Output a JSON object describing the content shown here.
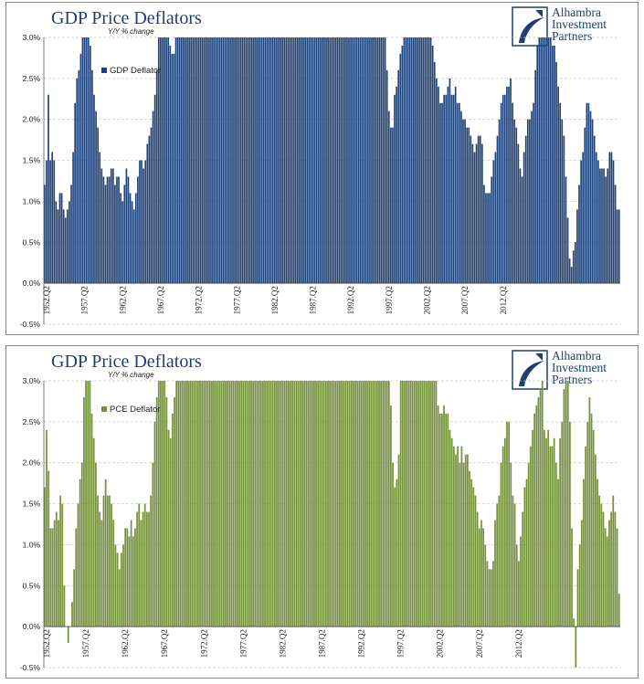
{
  "logo": {
    "line1": "Alhambra",
    "line2": "Investment",
    "line3": "Partners"
  },
  "chart_data": [
    {
      "type": "bar",
      "title": "GDP Price Deflators",
      "subtitle": "Y/Y % change",
      "legend": "GDP Deflator",
      "legend_position": "top-left",
      "color": "#1f4279",
      "ylim": [
        -0.5,
        3.0
      ],
      "yticks": [
        "-0.5%",
        "0.0%",
        "0.5%",
        "1.0%",
        "1.5%",
        "2.0%",
        "2.5%",
        "3.0%"
      ],
      "x_start": "1952.Q2",
      "x_tick_labels": [
        "1952.Q2",
        "1957.Q2",
        "1962.Q2",
        "1967.Q2",
        "1972.Q2",
        "1977.Q2",
        "1982.Q2",
        "1987.Q2",
        "1992.Q2",
        "1997.Q2",
        "2002.Q2",
        "2007.Q2",
        "2012.Q2"
      ],
      "grid": true,
      "values": [
        1.2,
        1.5,
        2.3,
        1.5,
        1.6,
        1.5,
        1.0,
        0.9,
        1.1,
        1.1,
        0.9,
        0.8,
        0.9,
        1.0,
        1.2,
        1.6,
        2.2,
        2.5,
        2.6,
        2.8,
        3.0,
        3.0,
        3.0,
        3.0,
        2.9,
        2.6,
        2.3,
        2.1,
        1.9,
        1.6,
        1.4,
        1.3,
        1.2,
        1.3,
        1.3,
        1.4,
        1.4,
        1.2,
        1.3,
        1.3,
        1.1,
        1.0,
        1.2,
        1.4,
        1.3,
        1.1,
        1.0,
        0.9,
        1.1,
        1.3,
        1.5,
        1.5,
        1.4,
        1.5,
        1.7,
        1.8,
        1.9,
        2.1,
        2.3,
        2.6,
        3.0,
        3.0,
        3.0,
        3.0,
        3.0,
        3.0,
        2.9,
        2.8,
        2.8,
        3.0,
        3.0,
        3.0,
        3.0,
        3.0,
        3.0,
        3.0,
        3.0,
        3.0,
        3.0,
        3.0,
        3.0,
        3.0,
        3.0,
        3.0,
        3.0,
        3.0,
        3.0,
        3.0,
        3.0,
        3.0,
        3.0,
        3.0,
        3.0,
        3.0,
        3.0,
        3.0,
        3.0,
        3.0,
        3.0,
        3.0,
        3.0,
        3.0,
        3.0,
        3.0,
        3.0,
        3.0,
        3.0,
        3.0,
        3.0,
        3.0,
        3.0,
        3.0,
        3.0,
        3.0,
        3.0,
        3.0,
        3.0,
        3.0,
        3.0,
        3.0,
        3.0,
        3.0,
        3.0,
        3.0,
        3.0,
        3.0,
        3.0,
        3.0,
        3.0,
        3.0,
        3.0,
        3.0,
        3.0,
        3.0,
        3.0,
        3.0,
        3.0,
        3.0,
        3.0,
        3.0,
        3.0,
        3.0,
        3.0,
        3.0,
        3.0,
        3.0,
        3.0,
        3.0,
        3.0,
        3.0,
        3.0,
        3.0,
        3.0,
        3.0,
        3.0,
        3.0,
        3.0,
        3.0,
        3.0,
        3.0,
        3.0,
        3.0,
        3.0,
        3.0,
        3.0,
        3.0,
        3.0,
        3.0,
        3.0,
        3.0,
        3.0,
        3.0,
        3.0,
        3.0,
        3.0,
        3.0,
        3.0,
        3.0,
        3.0,
        3.0,
        2.6,
        2.1,
        1.9,
        1.9,
        2.3,
        2.4,
        2.6,
        2.8,
        2.9,
        3.0,
        3.0,
        3.0,
        3.0,
        3.0,
        3.0,
        3.0,
        3.0,
        3.0,
        3.0,
        3.0,
        3.0,
        3.0,
        3.0,
        3.0,
        2.9,
        2.7,
        2.5,
        2.4,
        2.2,
        2.2,
        2.3,
        2.3,
        2.4,
        2.5,
        2.3,
        2.3,
        2.4,
        2.2,
        2.2,
        2.1,
        2.0,
        2.0,
        1.9,
        1.9,
        1.8,
        1.7,
        1.6,
        1.7,
        1.8,
        1.8,
        1.7,
        1.2,
        1.1,
        1.1,
        1.1,
        1.3,
        1.5,
        1.6,
        1.8,
        2.0,
        2.2,
        2.3,
        2.3,
        2.4,
        2.4,
        2.5,
        2.2,
        2.0,
        1.9,
        1.7,
        1.4,
        1.3,
        1.6,
        1.8,
        2.0,
        2.0,
        2.1,
        2.2,
        2.6,
        2.9,
        3.0,
        3.0,
        3.0,
        3.0,
        3.0,
        3.0,
        3.0,
        2.9,
        2.9,
        2.7,
        2.4,
        2.2,
        2.0,
        1.8,
        1.3,
        0.8,
        0.3,
        0.2,
        0.4,
        0.5,
        0.9,
        1.2,
        1.5,
        1.6,
        1.9,
        2.2,
        2.2,
        2.1,
        2.0,
        1.8,
        1.6,
        1.5,
        1.4,
        1.4,
        1.4,
        1.3,
        1.4,
        1.6,
        1.6,
        1.5,
        1.2,
        0.9,
        0.9
      ]
    },
    {
      "type": "bar",
      "title": "GDP Price Deflators",
      "subtitle": "Y/Y % change",
      "legend": "PCE Deflator",
      "legend_position": "top-left",
      "color": "#76923c",
      "ylim": [
        -0.5,
        3.0
      ],
      "yticks": [
        "-0.5%",
        "0.0%",
        "0.5%",
        "1.0%",
        "1.5%",
        "2.0%",
        "2.5%",
        "3.0%"
      ],
      "x_start": "1952.Q2",
      "x_tick_labels": [
        "1952.Q2",
        "1957.Q2",
        "1962.Q2",
        "1967.Q2",
        "1972.Q2",
        "1977.Q2",
        "1982.Q2",
        "1987.Q2",
        "1992.Q2",
        "1997.Q2",
        "2002.Q2",
        "2007.Q2",
        "2012.Q2"
      ],
      "grid": true,
      "values": [
        1.7,
        2.4,
        1.9,
        1.2,
        1.2,
        1.3,
        1.4,
        1.3,
        1.6,
        1.5,
        0.5,
        0.0,
        -0.2,
        0.0,
        0.3,
        0.7,
        1.2,
        1.5,
        1.8,
        2.0,
        2.8,
        3.0,
        3.0,
        3.0,
        2.6,
        2.3,
        2.0,
        1.6,
        1.4,
        1.3,
        1.6,
        1.8,
        1.6,
        1.6,
        1.5,
        1.3,
        1.0,
        0.9,
        0.7,
        0.9,
        1.0,
        1.2,
        1.2,
        1.1,
        1.3,
        1.1,
        1.2,
        1.4,
        1.5,
        1.3,
        1.4,
        1.5,
        1.4,
        1.4,
        1.6,
        2.0,
        2.5,
        2.8,
        3.0,
        3.0,
        3.0,
        3.0,
        2.8,
        2.4,
        2.3,
        2.6,
        2.8,
        3.0,
        3.0,
        3.0,
        3.0,
        3.0,
        3.0,
        3.0,
        3.0,
        3.0,
        3.0,
        3.0,
        3.0,
        3.0,
        3.0,
        3.0,
        3.0,
        3.0,
        3.0,
        3.0,
        3.0,
        3.0,
        3.0,
        3.0,
        3.0,
        3.0,
        3.0,
        3.0,
        3.0,
        3.0,
        3.0,
        3.0,
        3.0,
        3.0,
        3.0,
        3.0,
        3.0,
        3.0,
        3.0,
        3.0,
        3.0,
        3.0,
        3.0,
        3.0,
        3.0,
        3.0,
        3.0,
        3.0,
        3.0,
        3.0,
        3.0,
        3.0,
        3.0,
        3.0,
        3.0,
        3.0,
        3.0,
        3.0,
        3.0,
        3.0,
        3.0,
        3.0,
        3.0,
        3.0,
        3.0,
        3.0,
        3.0,
        3.0,
        3.0,
        3.0,
        3.0,
        3.0,
        3.0,
        3.0,
        3.0,
        3.0,
        3.0,
        3.0,
        3.0,
        3.0,
        3.0,
        3.0,
        3.0,
        3.0,
        3.0,
        3.0,
        3.0,
        3.0,
        3.0,
        3.0,
        3.0,
        3.0,
        3.0,
        3.0,
        3.0,
        3.0,
        3.0,
        3.0,
        3.0,
        3.0,
        3.0,
        3.0,
        3.0,
        3.0,
        3.0,
        3.0,
        3.0,
        3.0,
        3.0,
        3.0,
        2.7,
        2.0,
        1.7,
        1.8,
        2.1,
        3.0,
        3.0,
        3.0,
        3.0,
        3.0,
        3.0,
        3.0,
        3.0,
        3.0,
        3.0,
        3.0,
        3.0,
        3.0,
        3.0,
        3.0,
        3.0,
        3.0,
        3.0,
        3.0,
        2.7,
        2.6,
        2.6,
        2.7,
        2.6,
        2.6,
        2.4,
        2.3,
        2.2,
        2.1,
        2.2,
        2.0,
        2.2,
        2.0,
        2.1,
        2.1,
        1.9,
        1.8,
        1.7,
        1.6,
        1.4,
        1.2,
        1.3,
        1.2,
        1.0,
        0.8,
        0.7,
        0.7,
        0.8,
        1.3,
        1.5,
        1.6,
        2.0,
        2.2,
        2.3,
        2.5,
        2.5,
        2.0,
        1.6,
        1.5,
        1.0,
        0.8,
        1.1,
        1.4,
        1.7,
        1.8,
        2.0,
        2.2,
        2.4,
        2.6,
        2.7,
        2.8,
        2.9,
        3.0,
        2.4,
        2.3,
        2.4,
        2.2,
        2.2,
        2.3,
        2.0,
        1.8,
        2.3,
        2.5,
        2.9,
        3.0,
        3.0,
        2.5,
        1.2,
        0.1,
        -0.5,
        0.7,
        1.0,
        1.3,
        1.8,
        2.2,
        2.5,
        2.8,
        2.6,
        2.4,
        2.1,
        1.8,
        1.6,
        1.5,
        1.4,
        1.2,
        1.1,
        1.3,
        1.4,
        1.6,
        1.4,
        1.2,
        0.4
      ]
    }
  ]
}
